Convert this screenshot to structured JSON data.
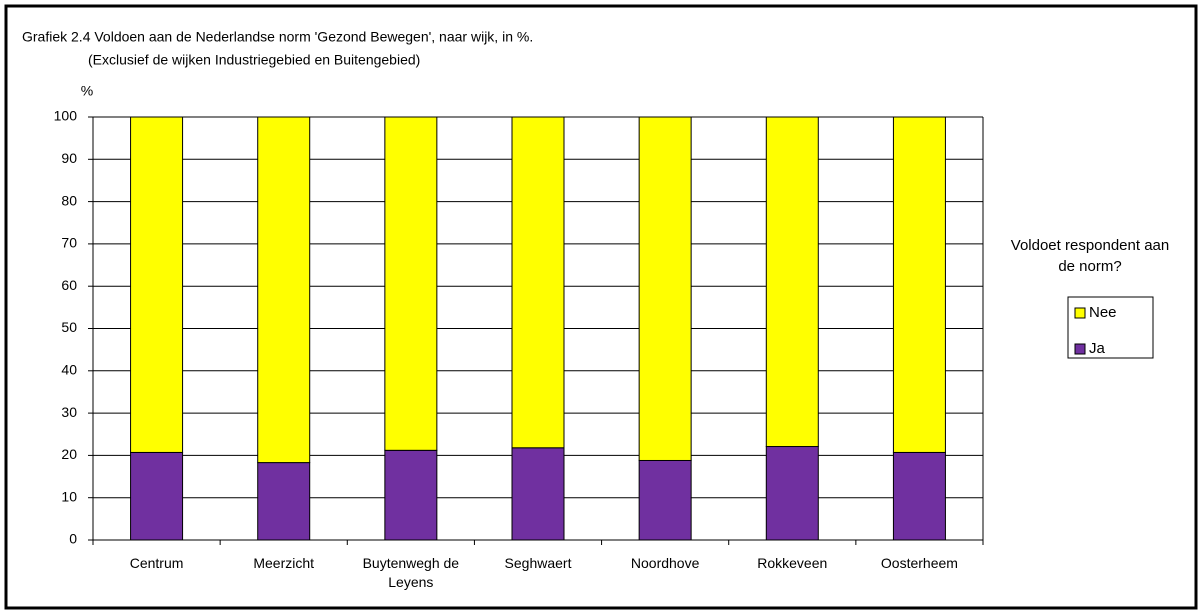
{
  "chart_data": {
    "type": "stacked_bar",
    "title": "Grafiek 2.4  Voldoen aan de Nederlandse norm 'Gezond Bewegen', naar wijk, in %.",
    "subtitle": "(Exclusief de wijken Industriegebied en Buitengebied)",
    "y_label": "%",
    "categories": [
      "Centrum",
      "Meerzicht",
      "Buytenwegh de Leyens",
      "Seghwaert",
      "Noordhove",
      "Rokkeveen",
      "Oosterheem"
    ],
    "series": [
      {
        "name": "Ja",
        "color": "#7030a0",
        "values": [
          20.7,
          18.3,
          21.2,
          21.8,
          18.8,
          22.1,
          20.7
        ]
      },
      {
        "name": "Nee",
        "color": "#ffff00",
        "values": [
          79.3,
          81.7,
          78.8,
          78.2,
          81.2,
          77.9,
          79.3
        ]
      }
    ],
    "ylim": [
      0,
      100
    ],
    "yticks": [
      0,
      10,
      20,
      30,
      40,
      50,
      60,
      70,
      80,
      90,
      100
    ],
    "grid": true,
    "legend_title": "Voldoet respondent aan de norm?",
    "legend": "right"
  }
}
